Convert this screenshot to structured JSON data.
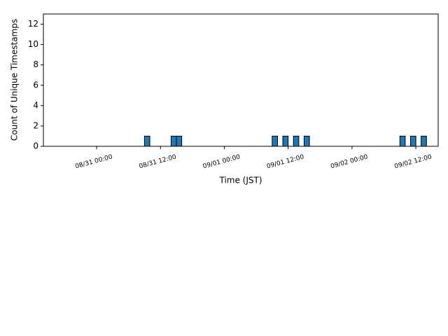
{
  "chart_data": {
    "type": "histogram",
    "xlabel": "Time (JST)",
    "ylabel": "Count of Unique Timestamps",
    "color": "#1f77b4",
    "edgecolor": "#000000",
    "bins": [
      "08/30 18:00",
      "08/30 19:00",
      "08/30 20:00",
      "08/30 21:00",
      "08/30 22:00",
      "08/30 23:00",
      "08/31 00:00",
      "08/31 01:00",
      "08/31 02:00",
      "08/31 03:00",
      "08/31 04:00",
      "08/31 05:00",
      "08/31 06:00",
      "08/31 07:00",
      "08/31 08:00",
      "08/31 09:00",
      "08/31 10:00",
      "08/31 11:00",
      "08/31 12:00",
      "08/31 13:00",
      "08/31 14:00",
      "08/31 15:00",
      "08/31 16:00",
      "08/31 17:00",
      "08/31 18:00",
      "08/31 19:00",
      "08/31 20:00",
      "08/31 21:00",
      "08/31 22:00",
      "08/31 23:00",
      "09/01 00:00",
      "09/01 01:00",
      "09/01 02:00",
      "09/01 03:00",
      "09/01 04:00",
      "09/01 05:00",
      "09/01 06:00",
      "09/01 07:00",
      "09/01 08:00",
      "09/01 09:00",
      "09/01 10:00",
      "09/01 11:00",
      "09/01 12:00",
      "09/01 13:00",
      "09/01 14:00",
      "09/01 15:00",
      "09/01 16:00",
      "09/01 17:00",
      "09/01 18:00",
      "09/01 19:00",
      "09/01 20:00",
      "09/01 21:00",
      "09/01 22:00",
      "09/01 23:00",
      "09/02 00:00",
      "09/02 01:00",
      "09/02 02:00",
      "09/02 03:00",
      "09/02 04:00",
      "09/02 05:00",
      "09/02 06:00",
      "09/02 07:00",
      "09/02 08:00",
      "09/02 09:00",
      "09/02 10:00",
      "09/02 11:00",
      "09/02 12:00",
      "09/02 13:00",
      "09/02 14:00"
    ],
    "counts": [
      0,
      0,
      0,
      0,
      0,
      0,
      0,
      0,
      0,
      0,
      0,
      0,
      0,
      0,
      0,
      1,
      0,
      0,
      0,
      0,
      1,
      1,
      0,
      0,
      0,
      0,
      0,
      0,
      0,
      0,
      0,
      0,
      0,
      0,
      0,
      0,
      0,
      0,
      0,
      1,
      0,
      1,
      0,
      1,
      0,
      1,
      0,
      0,
      0,
      0,
      0,
      0,
      0,
      0,
      0,
      0,
      0,
      0,
      0,
      0,
      0,
      0,
      0,
      1,
      0,
      1,
      0,
      1
    ],
    "xlim": [
      "08/30 14:00",
      "09/02 16:12"
    ],
    "xticks": [
      "08/31 00:00",
      "08/31 12:00",
      "09/01 00:00",
      "09/01 12:00",
      "09/02 00:00",
      "09/02 12:00"
    ],
    "ylim": [
      0,
      13
    ],
    "yticks": [
      0,
      2,
      4,
      6,
      8,
      10,
      12
    ]
  }
}
